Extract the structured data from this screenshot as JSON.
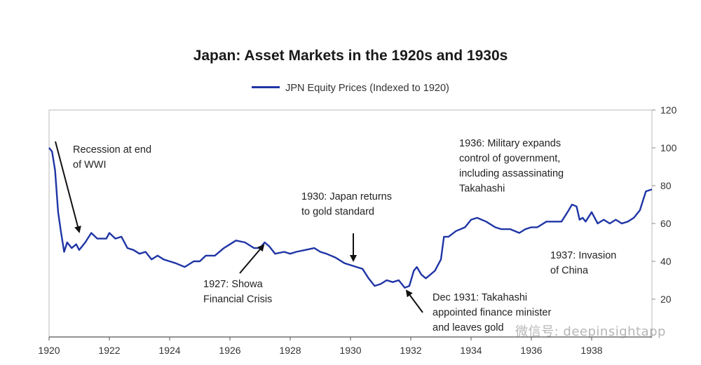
{
  "chart_data": {
    "type": "line",
    "title": "Japan: Asset Markets in the 1920s and 1930s",
    "xlabel": "",
    "ylabel": "",
    "xlim": [
      1920,
      1940
    ],
    "ylim": [
      0,
      120
    ],
    "x_ticks": [
      "1920",
      "1922",
      "1924",
      "1926",
      "1928",
      "1930",
      "1932",
      "1934",
      "1936",
      "1938"
    ],
    "y_ticks": [
      "20",
      "40",
      "60",
      "80",
      "100",
      "120"
    ],
    "grid": false,
    "legend": "top-center",
    "series": [
      {
        "name": "JPN Equity Prices (Indexed to 1920)",
        "color": "#1f35a5",
        "points": [
          [
            1920.0,
            100
          ],
          [
            1920.1,
            98
          ],
          [
            1920.2,
            88
          ],
          [
            1920.3,
            66
          ],
          [
            1920.4,
            55
          ],
          [
            1920.5,
            45
          ],
          [
            1920.6,
            50
          ],
          [
            1920.75,
            47
          ],
          [
            1920.9,
            49
          ],
          [
            1921.0,
            46
          ],
          [
            1921.2,
            50
          ],
          [
            1921.4,
            55
          ],
          [
            1921.6,
            52
          ],
          [
            1921.9,
            52
          ],
          [
            1922.0,
            55
          ],
          [
            1922.2,
            52
          ],
          [
            1922.4,
            53
          ],
          [
            1922.6,
            47
          ],
          [
            1922.8,
            46
          ],
          [
            1923.0,
            44
          ],
          [
            1923.2,
            45
          ],
          [
            1923.4,
            41
          ],
          [
            1923.6,
            43
          ],
          [
            1923.8,
            41
          ],
          [
            1924.0,
            40
          ],
          [
            1924.2,
            39
          ],
          [
            1924.5,
            37
          ],
          [
            1924.8,
            40
          ],
          [
            1925.0,
            40
          ],
          [
            1925.2,
            43
          ],
          [
            1925.5,
            43
          ],
          [
            1925.8,
            47
          ],
          [
            1926.0,
            49
          ],
          [
            1926.2,
            51
          ],
          [
            1926.5,
            50
          ],
          [
            1926.8,
            47
          ],
          [
            1927.0,
            47
          ],
          [
            1927.15,
            50
          ],
          [
            1927.3,
            48
          ],
          [
            1927.5,
            44
          ],
          [
            1927.8,
            45
          ],
          [
            1928.0,
            44
          ],
          [
            1928.2,
            45
          ],
          [
            1928.5,
            46
          ],
          [
            1928.8,
            47
          ],
          [
            1929.0,
            45
          ],
          [
            1929.2,
            44
          ],
          [
            1929.5,
            42
          ],
          [
            1929.8,
            39
          ],
          [
            1930.0,
            38
          ],
          [
            1930.2,
            37
          ],
          [
            1930.4,
            36
          ],
          [
            1930.6,
            31
          ],
          [
            1930.8,
            27
          ],
          [
            1931.0,
            28
          ],
          [
            1931.2,
            30
          ],
          [
            1931.4,
            29
          ],
          [
            1931.6,
            30
          ],
          [
            1931.8,
            26
          ],
          [
            1931.95,
            27
          ],
          [
            1932.1,
            35
          ],
          [
            1932.2,
            37
          ],
          [
            1932.35,
            33
          ],
          [
            1932.5,
            31
          ],
          [
            1932.65,
            33
          ],
          [
            1932.8,
            35
          ],
          [
            1933.0,
            41
          ],
          [
            1933.1,
            53
          ],
          [
            1933.25,
            53
          ],
          [
            1933.5,
            56
          ],
          [
            1933.8,
            58
          ],
          [
            1934.0,
            62
          ],
          [
            1934.2,
            63
          ],
          [
            1934.5,
            61
          ],
          [
            1934.8,
            58
          ],
          [
            1935.0,
            57
          ],
          [
            1935.3,
            57
          ],
          [
            1935.6,
            55
          ],
          [
            1935.8,
            57
          ],
          [
            1936.0,
            58
          ],
          [
            1936.2,
            58
          ],
          [
            1936.5,
            61
          ],
          [
            1936.8,
            61
          ],
          [
            1937.0,
            61
          ],
          [
            1937.2,
            66
          ],
          [
            1937.35,
            70
          ],
          [
            1937.5,
            69
          ],
          [
            1937.6,
            62
          ],
          [
            1937.7,
            63
          ],
          [
            1937.8,
            61
          ],
          [
            1938.0,
            66
          ],
          [
            1938.2,
            60
          ],
          [
            1938.4,
            62
          ],
          [
            1938.6,
            60
          ],
          [
            1938.8,
            62
          ],
          [
            1939.0,
            60
          ],
          [
            1939.2,
            61
          ],
          [
            1939.4,
            63
          ],
          [
            1939.6,
            67
          ],
          [
            1939.8,
            77
          ],
          [
            1940.0,
            78
          ]
        ]
      }
    ],
    "annotations": [
      {
        "lines": [
          "Recession at end",
          "of WWI"
        ]
      },
      {
        "lines": [
          "1927: Showa",
          "Financial Crisis"
        ]
      },
      {
        "lines": [
          "1930: Japan returns",
          "to gold standard"
        ]
      },
      {
        "lines": [
          "Dec 1931: Takahashi",
          "appointed finance minister",
          "and leaves gold"
        ]
      },
      {
        "lines": [
          "1936: Military expands",
          "control of government,",
          "including assassinating",
          "Takahashi"
        ]
      },
      {
        "lines": [
          "1937: Invasion",
          "of China"
        ]
      }
    ]
  },
  "watermark": "微信号: deepinsightapp"
}
